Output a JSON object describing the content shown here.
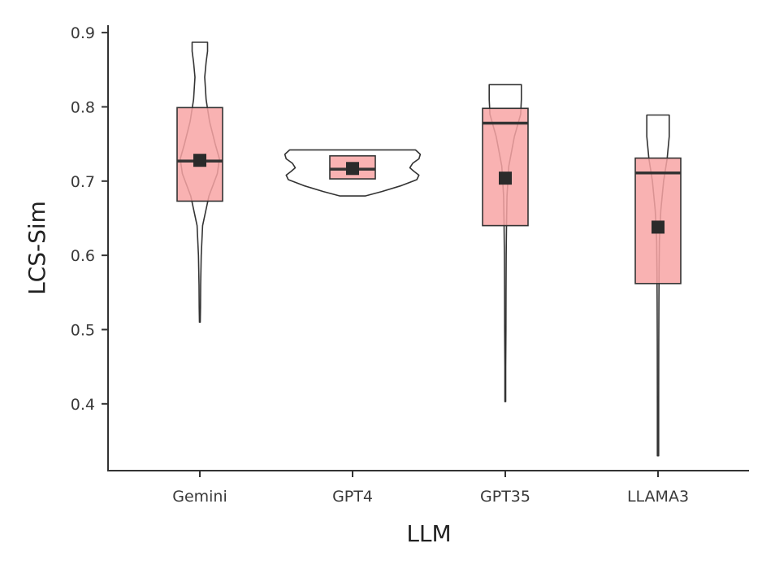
{
  "chart_data": {
    "type": "violin",
    "xlabel": "LLM",
    "ylabel": "LCS-Sim",
    "categories": [
      "Gemini",
      "GPT4",
      "GPT35",
      "LLAMA3"
    ],
    "ylim": [
      0.31,
      0.91
    ],
    "yticks": [
      0.4,
      0.5,
      0.6,
      0.7,
      0.8,
      0.9
    ],
    "ytick_labels": [
      "0.4",
      "0.5",
      "0.6",
      "0.7",
      "0.8",
      "0.9"
    ],
    "grid": false,
    "legend": "none",
    "series": [
      {
        "category": "Gemini",
        "min": 0.51,
        "max": 0.887,
        "q1": 0.673,
        "median": 0.727,
        "q3": 0.799,
        "mean": 0.728,
        "violin": [
          [
            0.51,
            0.006
          ],
          [
            0.53,
            0.009
          ],
          [
            0.56,
            0.012
          ],
          [
            0.6,
            0.02
          ],
          [
            0.64,
            0.04
          ],
          [
            0.68,
            0.13
          ],
          [
            0.71,
            0.25
          ],
          [
            0.73,
            0.28
          ],
          [
            0.75,
            0.22
          ],
          [
            0.78,
            0.14
          ],
          [
            0.81,
            0.09
          ],
          [
            0.84,
            0.07
          ],
          [
            0.86,
            0.09
          ],
          [
            0.875,
            0.11
          ],
          [
            0.887,
            0.11
          ]
        ]
      },
      {
        "category": "GPT4",
        "min": 0.68,
        "max": 0.742,
        "q1": 0.703,
        "median": 0.716,
        "q3": 0.734,
        "mean": 0.717,
        "violin": [
          [
            0.68,
            0.18
          ],
          [
            0.686,
            0.42
          ],
          [
            0.694,
            0.7
          ],
          [
            0.702,
            0.92
          ],
          [
            0.708,
            0.95
          ],
          [
            0.713,
            0.88
          ],
          [
            0.718,
            0.82
          ],
          [
            0.724,
            0.86
          ],
          [
            0.73,
            0.95
          ],
          [
            0.736,
            0.97
          ],
          [
            0.742,
            0.9
          ]
        ]
      },
      {
        "category": "GPT35",
        "min": 0.403,
        "max": 0.83,
        "q1": 0.64,
        "median": 0.778,
        "q3": 0.798,
        "mean": 0.704,
        "violin": [
          [
            0.403,
            0.006
          ],
          [
            0.45,
            0.006
          ],
          [
            0.5,
            0.009
          ],
          [
            0.55,
            0.011
          ],
          [
            0.6,
            0.013
          ],
          [
            0.64,
            0.018
          ],
          [
            0.68,
            0.025
          ],
          [
            0.72,
            0.05
          ],
          [
            0.76,
            0.13
          ],
          [
            0.79,
            0.22
          ],
          [
            0.81,
            0.23
          ],
          [
            0.83,
            0.23
          ]
        ]
      },
      {
        "category": "LLAMA3",
        "min": 0.33,
        "max": 0.789,
        "q1": 0.562,
        "median": 0.711,
        "q3": 0.731,
        "mean": 0.638,
        "violin": [
          [
            0.33,
            0.009
          ],
          [
            0.4,
            0.009
          ],
          [
            0.48,
            0.011
          ],
          [
            0.54,
            0.013
          ],
          [
            0.58,
            0.015
          ],
          [
            0.62,
            0.02
          ],
          [
            0.66,
            0.04
          ],
          [
            0.7,
            0.08
          ],
          [
            0.73,
            0.13
          ],
          [
            0.76,
            0.16
          ],
          [
            0.789,
            0.16
          ]
        ]
      }
    ],
    "colors": {
      "box_fill": "#f8a4a4",
      "stroke": "#333333",
      "mean_marker": "#2b2b2b",
      "axis": "#333333"
    }
  }
}
